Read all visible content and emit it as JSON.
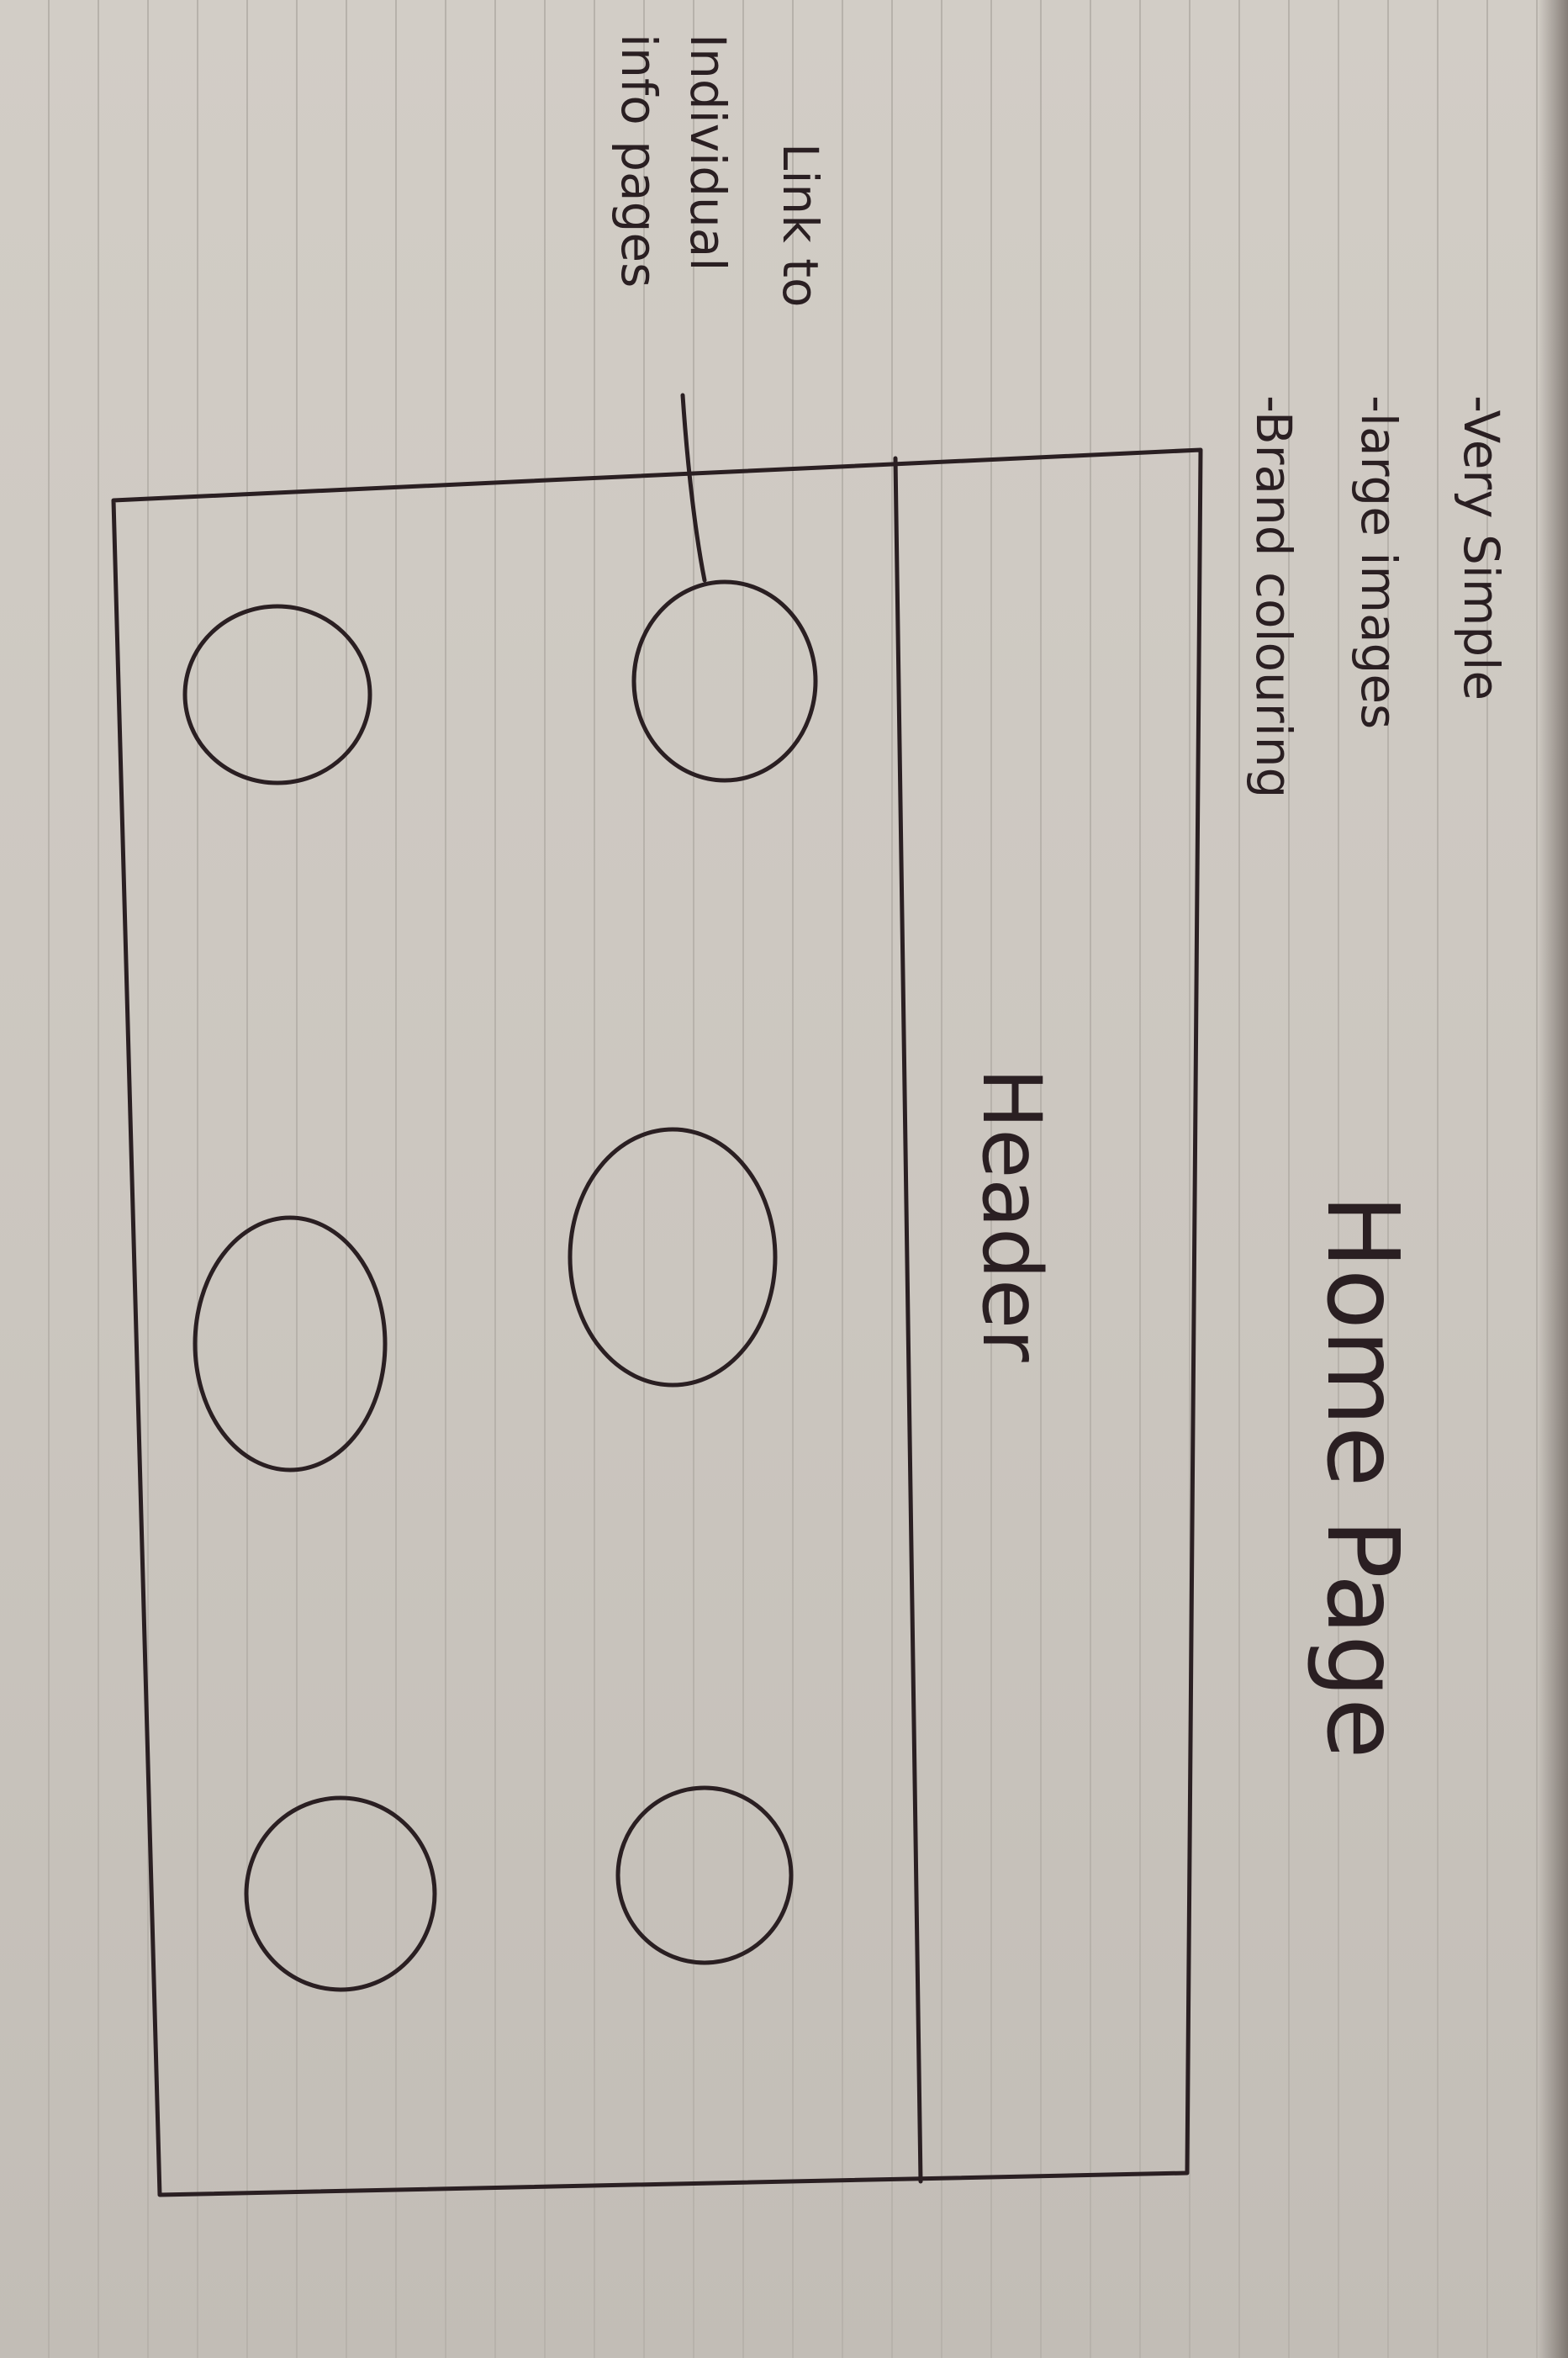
{
  "title": "Home Page",
  "header_label": "Header",
  "notes": [
    "-Very Simple",
    "-large images",
    "-Brand colouring"
  ],
  "annotation": [
    "Link to",
    "Individual",
    "info pages"
  ],
  "circles": [
    "info-link-1",
    "info-link-2",
    "info-link-3",
    "info-link-4",
    "info-link-5",
    "info-link-6"
  ],
  "ink_color": "#2a1f22",
  "paper_color": "#cdc8c1"
}
